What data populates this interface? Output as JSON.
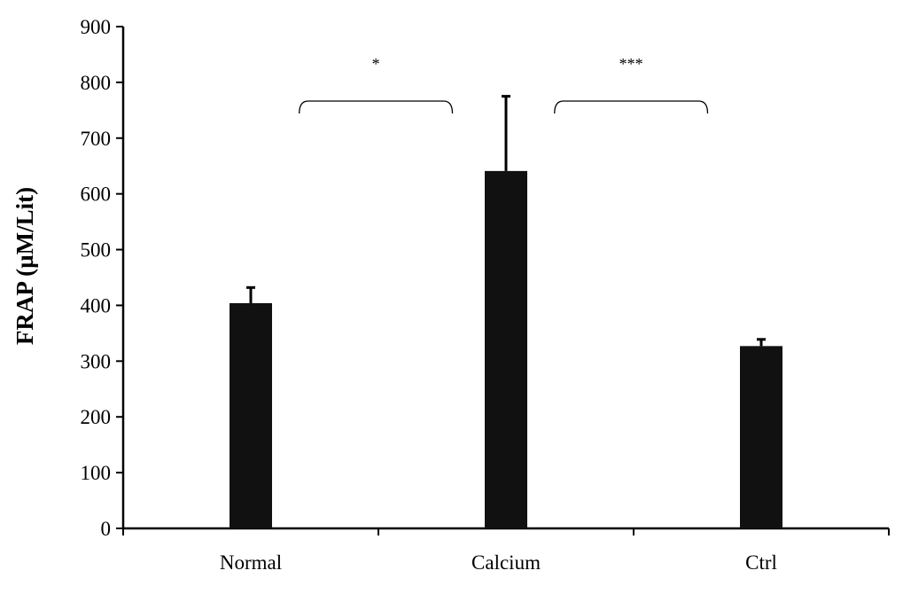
{
  "chart_data": {
    "type": "bar",
    "title": "",
    "xlabel": "",
    "ylabel": "FRAP (µM/Lit)",
    "ylim": [
      0,
      900
    ],
    "yticks": [
      "0",
      "100",
      "200",
      "300",
      "400",
      "500",
      "600",
      "700",
      "800",
      "900"
    ],
    "categories": [
      "Normal",
      "Calcium",
      "Ctrl"
    ],
    "values": [
      404,
      641,
      327
    ],
    "error_plus": [
      28,
      134,
      12
    ],
    "bar_color": "#111111",
    "grid": false,
    "legend": "none",
    "annotations": [
      {
        "text": "*",
        "between": [
          "Normal",
          "Calcium"
        ]
      },
      {
        "text": "***",
        "between": [
          "Calcium",
          "Ctrl"
        ]
      }
    ]
  }
}
